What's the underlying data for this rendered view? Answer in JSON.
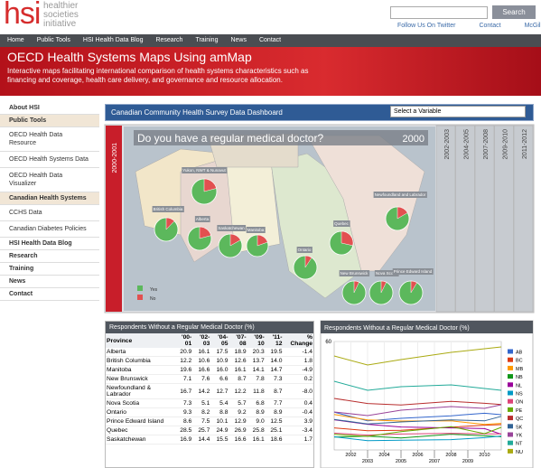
{
  "header": {
    "logo": "hsi",
    "tagline": [
      "healthier",
      "societies",
      "initiative"
    ],
    "search_button": "Search",
    "links": [
      "Follow Us On Twitter",
      "Contact",
      "McGill"
    ]
  },
  "nav": [
    "Home",
    "Public Tools",
    "HSI Health Data Blog",
    "Research",
    "Training",
    "News",
    "Contact"
  ],
  "banner": {
    "title": "OECD Health Systems Maps Using amMap",
    "description": "Interactive maps facilitating international comparison of health systems characteristics such as financing and coverage, health care delivery, and governance and resource allocation."
  },
  "sidebar": [
    {
      "label": "About HSI"
    },
    {
      "label": "Public Tools",
      "items": [
        "OECD Health Data Resource",
        "OECD Health Systems Data",
        "OECD Health Data Visualizer"
      ]
    },
    {
      "label": "Canadian Health Systems",
      "items": [
        "CCHS Data",
        "Canadian Diabetes Policies"
      ]
    },
    {
      "label": "HSI Health Data Blog"
    },
    {
      "label": "Research"
    },
    {
      "label": "Training"
    },
    {
      "label": "News"
    },
    {
      "label": "Contact"
    }
  ],
  "dashboard": {
    "title": "Canadian Community Health Survey Data Dashboard",
    "select": "Select a Variable",
    "active_period": "2000-2001",
    "periods": [
      "2002-2003",
      "2004-2005",
      "2007-2008",
      "2009-2010",
      "2011-2012"
    ],
    "map": {
      "question": "Do you have a regular medical doctor?",
      "year": "2000",
      "legend": [
        {
          "label": "Yes",
          "color": "#5cb85c"
        },
        {
          "label": "No",
          "color": "#e25050"
        }
      ],
      "regions": [
        {
          "label": "Yukon, NWT & Nunavut",
          "no": 21
        },
        {
          "label": "British Columbia",
          "no": 12.2
        },
        {
          "label": "Alberta",
          "no": 20.9
        },
        {
          "label": "Saskatchewan",
          "no": 16.9
        },
        {
          "label": "Manitoba",
          "no": 19.6
        },
        {
          "label": "Ontario",
          "no": 9.3
        },
        {
          "label": "Quebec",
          "no": 28.5
        },
        {
          "label": "Newfoundland and Labrador",
          "no": 16.7
        },
        {
          "label": "New Brunswick",
          "no": 7.1
        },
        {
          "label": "Nova Scotia",
          "no": 7.3
        },
        {
          "label": "Prince Edward Island",
          "no": 8.6
        }
      ]
    }
  },
  "table": {
    "title": "Respondents Without a Regular Medical Doctor (%)",
    "columns": [
      "Province",
      "'00-01",
      "'02-03",
      "'04-05",
      "'07-08",
      "'09-10",
      "'11-12",
      "% Change"
    ],
    "rows": [
      [
        "Alberta",
        "20.9",
        "16.1",
        "17.5",
        "18.9",
        "20.3",
        "19.5",
        "-1.4"
      ],
      [
        "British Columbia",
        "12.2",
        "10.6",
        "10.9",
        "12.6",
        "13.7",
        "14.0",
        "1.8"
      ],
      [
        "Manitoba",
        "19.6",
        "16.6",
        "16.0",
        "16.1",
        "14.1",
        "14.7",
        "-4.9"
      ],
      [
        "New Brunswick",
        "7.1",
        "7.6",
        "6.6",
        "8.7",
        "7.8",
        "7.3",
        "0.2"
      ],
      [
        "Newfoundland & Labrador",
        "16.7",
        "14.2",
        "12.7",
        "12.2",
        "11.8",
        "8.7",
        "-8.0"
      ],
      [
        "Nova Scotia",
        "7.3",
        "5.1",
        "5.4",
        "5.7",
        "6.8",
        "7.7",
        "0.4"
      ],
      [
        "Ontario",
        "9.3",
        "8.2",
        "8.8",
        "9.2",
        "8.9",
        "8.9",
        "-0.4"
      ],
      [
        "Prince Edward Island",
        "8.6",
        "7.5",
        "10.1",
        "12.9",
        "9.0",
        "12.5",
        "3.9"
      ],
      [
        "Quebec",
        "28.5",
        "25.7",
        "24.9",
        "26.9",
        "25.8",
        "25.1",
        "-3.4"
      ],
      [
        "Saskatchewan",
        "16.9",
        "14.4",
        "15.5",
        "16.6",
        "16.1",
        "18.6",
        "1.7"
      ]
    ]
  },
  "chart_data": {
    "type": "line",
    "title": "Respondents Without a Regular Medical Doctor (%)",
    "x": [
      2001,
      2003,
      2005,
      2008,
      2010,
      2011
    ],
    "xlim": [
      2001,
      2011
    ],
    "xticks": [
      2002,
      2003,
      2004,
      2005,
      2006,
      2007,
      2008,
      2009,
      2010
    ],
    "ylim": [
      0,
      60
    ],
    "yticks": [
      60
    ],
    "grid": true,
    "legend": "right",
    "series": [
      {
        "name": "AB",
        "color": "#3366cc",
        "values": [
          20.9,
          16.1,
          17.5,
          18.9,
          20.3,
          19.5
        ]
      },
      {
        "name": "BC",
        "color": "#dc3912",
        "values": [
          12.2,
          10.6,
          10.9,
          12.6,
          13.7,
          14.0
        ]
      },
      {
        "name": "MB",
        "color": "#ff9900",
        "values": [
          19.6,
          16.6,
          16.0,
          16.1,
          14.1,
          14.7
        ]
      },
      {
        "name": "NB",
        "color": "#109618",
        "values": [
          7.1,
          7.6,
          6.6,
          8.7,
          7.8,
          7.3
        ]
      },
      {
        "name": "NL",
        "color": "#990099",
        "values": [
          16.7,
          14.2,
          12.7,
          12.2,
          11.8,
          8.7
        ]
      },
      {
        "name": "NS",
        "color": "#0099c6",
        "values": [
          7.3,
          5.1,
          5.4,
          5.7,
          6.8,
          7.7
        ]
      },
      {
        "name": "ON",
        "color": "#dd4477",
        "values": [
          9.3,
          8.2,
          8.8,
          9.2,
          8.9,
          8.9
        ]
      },
      {
        "name": "PE",
        "color": "#66aa00",
        "values": [
          8.6,
          7.5,
          10.1,
          12.9,
          9.0,
          12.5
        ]
      },
      {
        "name": "QC",
        "color": "#b82e2e",
        "values": [
          28.5,
          25.7,
          24.9,
          26.9,
          25.8,
          25.1
        ]
      },
      {
        "name": "SK",
        "color": "#316395",
        "values": [
          16.9,
          14.4,
          15.5,
          16.6,
          16.1,
          18.6
        ]
      },
      {
        "name": "YK",
        "color": "#994499",
        "values": [
          21,
          19,
          22,
          24,
          23,
          25
        ]
      },
      {
        "name": "NT",
        "color": "#22aa99",
        "values": [
          38,
          33,
          35,
          36,
          34,
          33
        ]
      },
      {
        "name": "NU",
        "color": "#aaaa11",
        "values": [
          52,
          47,
          50,
          54,
          56,
          57
        ]
      }
    ]
  }
}
